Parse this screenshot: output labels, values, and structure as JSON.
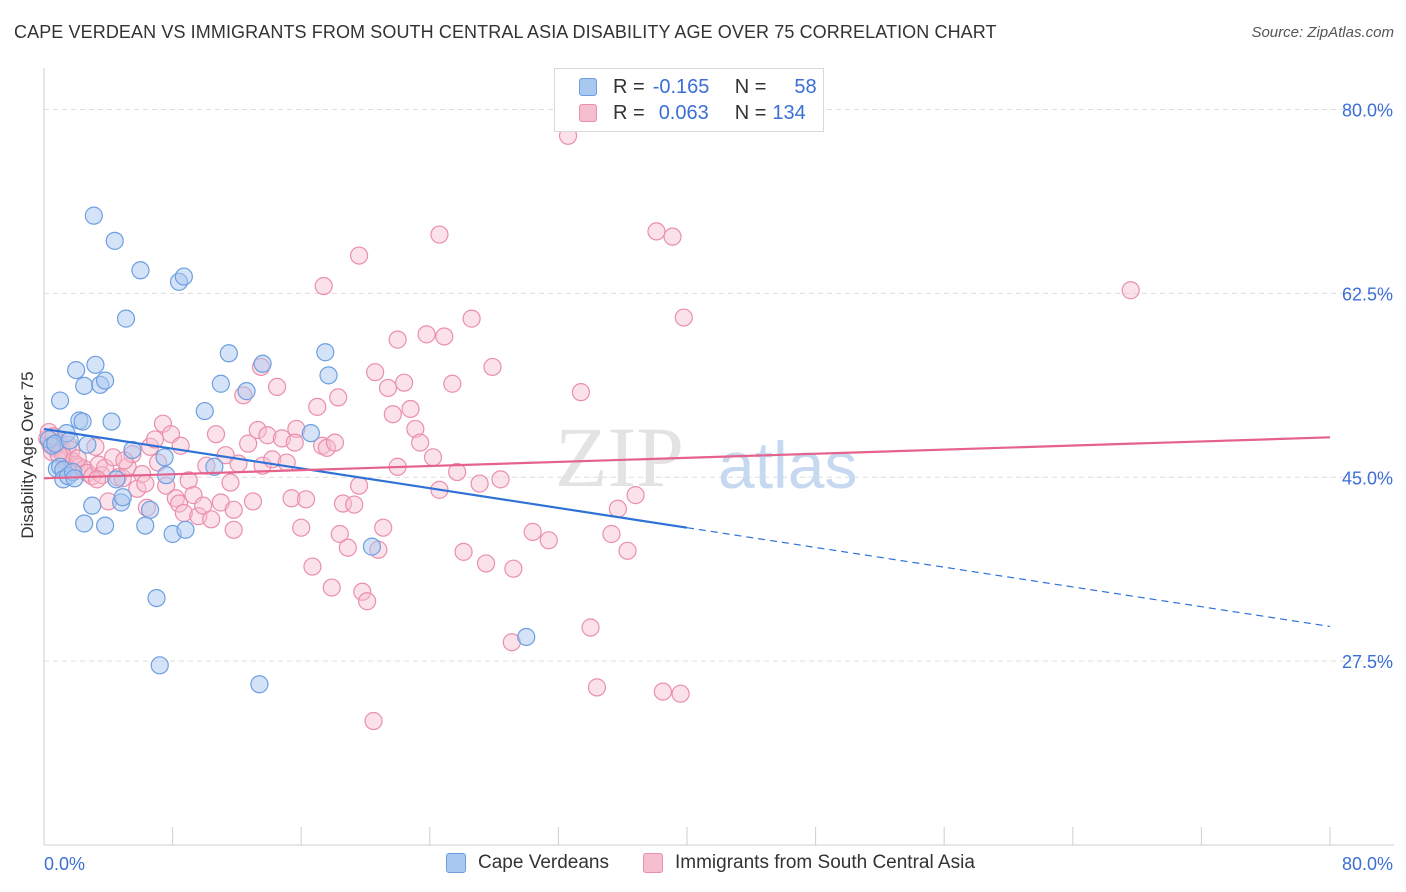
{
  "title": "CAPE VERDEAN VS IMMIGRANTS FROM SOUTH CENTRAL ASIA DISABILITY AGE OVER 75 CORRELATION CHART",
  "source": "Source: ZipAtlas.com",
  "watermark": "ZIPatlas",
  "legend": {
    "rows": [
      {
        "r_label": "R =",
        "r_value": "-0.165",
        "n_label": "N =",
        "n_value": "58"
      },
      {
        "r_label": "R =",
        "r_value": "0.063",
        "n_label": "N =",
        "n_value": "134"
      }
    ]
  },
  "colors": {
    "blue_fill": "#a9c8f0",
    "blue_stroke": "#6d9fe0",
    "blue_line": "#2f72d6",
    "pink_fill": "#f6bfd0",
    "pink_stroke": "#ea8fac",
    "pink_line": "#e5628c",
    "axis_text": "#3b6fd6",
    "grid": "#dddddd"
  },
  "chart_data": {
    "type": "scatter",
    "title": "CAPE VERDEAN VS IMMIGRANTS FROM SOUTH CENTRAL ASIA DISABILITY AGE OVER 75 CORRELATION CHART",
    "xlabel": "",
    "ylabel": "Disability Age Over 75",
    "xlim": [
      0,
      80
    ],
    "ylim": [
      10,
      83
    ],
    "x_tick_labels": [
      "0.0%",
      "80.0%"
    ],
    "y_ticks": [
      27.5,
      45.0,
      62.5,
      80.0
    ],
    "y_tick_labels": [
      "27.5%",
      "45.0%",
      "62.5%",
      "80.0%"
    ],
    "grid": true,
    "legend_position": "bottom",
    "series": [
      {
        "name": "Cape Verdeans",
        "color": "#6d9fe0",
        "trend": {
          "x": [
            0,
            40,
            80
          ],
          "y": [
            49.6,
            40.2,
            30.8
          ],
          "solid_until": 40
        },
        "points": [
          [
            0.3,
            48.6
          ],
          [
            0.5,
            48.0
          ],
          [
            0.7,
            48.2
          ],
          [
            0.8,
            45.8
          ],
          [
            1.0,
            52.3
          ],
          [
            1.0,
            46.0
          ],
          [
            1.2,
            45.7
          ],
          [
            1.2,
            44.8
          ],
          [
            1.4,
            49.2
          ],
          [
            1.5,
            45.1
          ],
          [
            1.6,
            48.5
          ],
          [
            1.8,
            45.5
          ],
          [
            1.9,
            44.9
          ],
          [
            2.0,
            55.2
          ],
          [
            2.2,
            50.4
          ],
          [
            2.4,
            50.3
          ],
          [
            2.5,
            53.7
          ],
          [
            2.5,
            40.6
          ],
          [
            2.7,
            48.1
          ],
          [
            3.0,
            42.3
          ],
          [
            3.1,
            69.9
          ],
          [
            3.2,
            55.7
          ],
          [
            3.5,
            53.8
          ],
          [
            3.8,
            40.4
          ],
          [
            3.8,
            54.2
          ],
          [
            4.2,
            50.3
          ],
          [
            4.4,
            67.5
          ],
          [
            4.5,
            44.8
          ],
          [
            4.8,
            42.6
          ],
          [
            4.9,
            43.1
          ],
          [
            5.1,
            60.1
          ],
          [
            5.5,
            47.6
          ],
          [
            6.0,
            64.7
          ],
          [
            6.3,
            40.4
          ],
          [
            6.6,
            41.9
          ],
          [
            7.0,
            33.5
          ],
          [
            7.2,
            27.1
          ],
          [
            7.5,
            46.9
          ],
          [
            7.6,
            45.2
          ],
          [
            8.0,
            39.6
          ],
          [
            8.4,
            63.6
          ],
          [
            8.7,
            64.1
          ],
          [
            8.8,
            40.0
          ],
          [
            10.0,
            51.3
          ],
          [
            10.6,
            46.0
          ],
          [
            11.0,
            53.9
          ],
          [
            11.5,
            56.8
          ],
          [
            12.6,
            53.2
          ],
          [
            13.4,
            25.3
          ],
          [
            13.6,
            55.8
          ],
          [
            16.6,
            49.2
          ],
          [
            17.5,
            56.9
          ],
          [
            17.7,
            54.7
          ],
          [
            20.4,
            38.4
          ],
          [
            30.0,
            29.8
          ]
        ]
      },
      {
        "name": "Immigrants from South Central Asia",
        "color": "#ea8fac",
        "trend": {
          "x": [
            0,
            80
          ],
          "y": [
            44.9,
            48.8
          ]
        },
        "points": [
          [
            0.2,
            48.7
          ],
          [
            0.4,
            48.1
          ],
          [
            0.5,
            47.4
          ],
          [
            0.7,
            47.8
          ],
          [
            0.9,
            48.3
          ],
          [
            1.0,
            48.2
          ],
          [
            1.1,
            47.6
          ],
          [
            1.3,
            46.7
          ],
          [
            1.4,
            45.9
          ],
          [
            1.5,
            48.1
          ],
          [
            1.7,
            47.6
          ],
          [
            1.8,
            46.5
          ],
          [
            2.0,
            46.2
          ],
          [
            2.2,
            46.0
          ],
          [
            2.5,
            45.8
          ],
          [
            2.7,
            45.4
          ],
          [
            3.0,
            45.1
          ],
          [
            3.2,
            47.9
          ],
          [
            3.4,
            46.2
          ],
          [
            3.6,
            45.2
          ],
          [
            3.8,
            45.9
          ],
          [
            4.0,
            42.7
          ],
          [
            4.3,
            46.9
          ],
          [
            4.6,
            45.0
          ],
          [
            4.9,
            44.9
          ],
          [
            5.2,
            46.0
          ],
          [
            5.5,
            47.2
          ],
          [
            5.8,
            43.9
          ],
          [
            6.1,
            45.3
          ],
          [
            6.3,
            44.4
          ],
          [
            6.6,
            47.9
          ],
          [
            6.9,
            48.6
          ],
          [
            7.1,
            46.4
          ],
          [
            7.4,
            50.1
          ],
          [
            7.6,
            44.2
          ],
          [
            7.9,
            49.1
          ],
          [
            8.2,
            43.0
          ],
          [
            8.4,
            42.5
          ],
          [
            8.7,
            41.6
          ],
          [
            9.0,
            44.7
          ],
          [
            9.3,
            43.3
          ],
          [
            9.6,
            41.3
          ],
          [
            9.9,
            42.3
          ],
          [
            10.1,
            46.1
          ],
          [
            10.4,
            41.0
          ],
          [
            10.7,
            49.1
          ],
          [
            11.0,
            42.6
          ],
          [
            11.3,
            47.1
          ],
          [
            11.6,
            44.5
          ],
          [
            11.8,
            40.0
          ],
          [
            12.1,
            46.3
          ],
          [
            12.4,
            52.8
          ],
          [
            12.7,
            48.2
          ],
          [
            13.0,
            42.7
          ],
          [
            13.3,
            49.5
          ],
          [
            13.6,
            46.1
          ],
          [
            13.9,
            49.0
          ],
          [
            14.2,
            46.7
          ],
          [
            14.5,
            53.6
          ],
          [
            14.8,
            48.7
          ],
          [
            15.1,
            46.4
          ],
          [
            15.4,
            43.0
          ],
          [
            15.7,
            49.6
          ],
          [
            16.0,
            40.2
          ],
          [
            16.3,
            42.9
          ],
          [
            16.7,
            36.5
          ],
          [
            17.0,
            51.7
          ],
          [
            17.3,
            48.0
          ],
          [
            17.6,
            47.8
          ],
          [
            17.9,
            34.5
          ],
          [
            18.1,
            48.3
          ],
          [
            18.4,
            39.6
          ],
          [
            18.6,
            42.5
          ],
          [
            18.9,
            38.3
          ],
          [
            19.3,
            42.4
          ],
          [
            19.6,
            44.2
          ],
          [
            19.8,
            34.1
          ],
          [
            20.1,
            33.2
          ],
          [
            20.5,
            21.8
          ],
          [
            20.8,
            38.1
          ],
          [
            21.1,
            40.2
          ],
          [
            21.4,
            53.5
          ],
          [
            21.7,
            51.0
          ],
          [
            22.0,
            46.0
          ],
          [
            22.4,
            54.0
          ],
          [
            22.8,
            51.5
          ],
          [
            23.1,
            49.6
          ],
          [
            23.4,
            48.3
          ],
          [
            23.8,
            58.6
          ],
          [
            24.2,
            46.9
          ],
          [
            24.6,
            43.8
          ],
          [
            24.9,
            58.4
          ],
          [
            25.4,
            53.9
          ],
          [
            25.7,
            45.5
          ],
          [
            26.1,
            37.9
          ],
          [
            26.6,
            60.1
          ],
          [
            27.1,
            44.4
          ],
          [
            27.5,
            36.8
          ],
          [
            27.9,
            55.5
          ],
          [
            28.4,
            44.8
          ],
          [
            29.1,
            29.3
          ],
          [
            30.4,
            39.8
          ],
          [
            32.6,
            77.5
          ],
          [
            33.4,
            53.1
          ],
          [
            34.0,
            30.7
          ],
          [
            34.4,
            25.0
          ],
          [
            35.3,
            39.6
          ],
          [
            35.7,
            42.0
          ],
          [
            36.3,
            38.0
          ],
          [
            36.8,
            43.3
          ],
          [
            17.4,
            63.2
          ],
          [
            19.6,
            66.1
          ],
          [
            24.6,
            68.1
          ],
          [
            22.0,
            58.1
          ],
          [
            20.6,
            55.0
          ],
          [
            13.5,
            55.5
          ],
          [
            15.6,
            48.3
          ],
          [
            18.3,
            52.6
          ],
          [
            38.1,
            68.4
          ],
          [
            39.1,
            67.9
          ],
          [
            38.5,
            24.6
          ],
          [
            39.6,
            24.4
          ],
          [
            0.3,
            49.3
          ],
          [
            0.6,
            48.9
          ],
          [
            1.2,
            47.0
          ],
          [
            2.1,
            46.8
          ],
          [
            3.3,
            44.8
          ],
          [
            5.0,
            46.6
          ],
          [
            6.4,
            42.1
          ],
          [
            8.5,
            48.0
          ],
          [
            11.8,
            41.9
          ],
          [
            39.8,
            60.2
          ],
          [
            67.6,
            62.8
          ],
          [
            29.2,
            36.3
          ],
          [
            31.4,
            39.0
          ],
          [
            0.9,
            47.2
          ]
        ]
      }
    ]
  }
}
